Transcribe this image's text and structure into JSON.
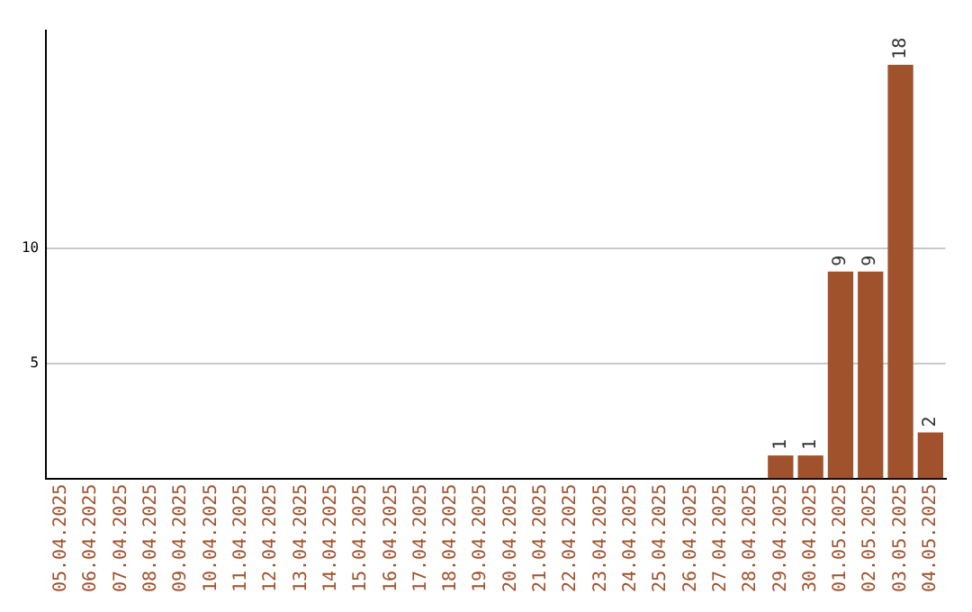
{
  "chart_data": {
    "type": "bar",
    "categories": [
      "05.04.2025",
      "06.04.2025",
      "07.04.2025",
      "08.04.2025",
      "09.04.2025",
      "10.04.2025",
      "11.04.2025",
      "12.04.2025",
      "13.04.2025",
      "14.04.2025",
      "15.04.2025",
      "16.04.2025",
      "17.04.2025",
      "18.04.2025",
      "19.04.2025",
      "20.04.2025",
      "21.04.2025",
      "22.04.2025",
      "23.04.2025",
      "24.04.2025",
      "25.04.2025",
      "26.04.2025",
      "27.04.2025",
      "28.04.2025",
      "29.04.2025",
      "30.04.2025",
      "01.05.2025",
      "02.05.2025",
      "03.05.2025",
      "04.05.2025"
    ],
    "values": [
      0,
      0,
      0,
      0,
      0,
      0,
      0,
      0,
      0,
      0,
      0,
      0,
      0,
      0,
      0,
      0,
      0,
      0,
      0,
      0,
      0,
      0,
      0,
      0,
      1,
      1,
      9,
      9,
      18,
      2
    ],
    "value_labels": [
      null,
      null,
      null,
      null,
      null,
      null,
      null,
      null,
      null,
      null,
      null,
      null,
      null,
      null,
      null,
      null,
      null,
      null,
      null,
      null,
      null,
      null,
      null,
      null,
      "1",
      "1",
      "9",
      "9",
      "18",
      "2"
    ],
    "color": "#a0522d",
    "ylim": [
      0,
      19.5
    ],
    "yticks": [
      5,
      10
    ],
    "grid": "y",
    "legend": false
  }
}
